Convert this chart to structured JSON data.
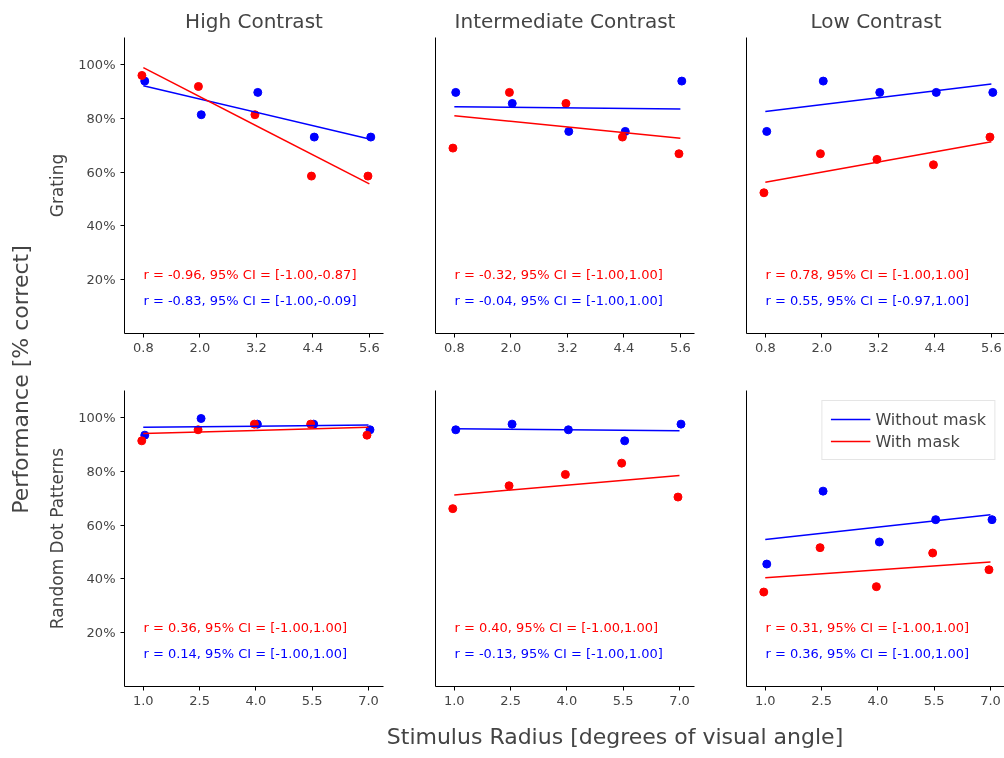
{
  "chart_data": [
    {
      "type": "scatter",
      "title": "High Contrast",
      "ylabel": "Grating",
      "xlim": [
        0.4,
        5.9
      ],
      "ylim": [
        0,
        110
      ],
      "xticks": [
        {
          "value": 0.8,
          "label": "0.8"
        },
        {
          "value": 2.0,
          "label": "2.0"
        },
        {
          "value": 3.2,
          "label": "3.2"
        },
        {
          "value": 4.4,
          "label": "4.4"
        },
        {
          "value": 5.6,
          "label": "5.6"
        }
      ],
      "yticks": [
        {
          "value": 20,
          "label": "20%"
        },
        {
          "value": 40,
          "label": "40%"
        },
        {
          "value": 60,
          "label": "60%"
        },
        {
          "value": 80,
          "label": "80%"
        },
        {
          "value": 100,
          "label": "100%"
        }
      ],
      "series": [
        {
          "type": "scatter",
          "color": "#0000ff",
          "x": [
            0.83,
            2.03,
            3.23,
            4.43,
            5.63
          ],
          "values": [
            93.8,
            81.3,
            89.6,
            73.0,
            73.0
          ]
        },
        {
          "type": "scatter",
          "color": "#ff0000",
          "x": [
            0.77,
            1.97,
            3.17,
            4.37,
            5.57
          ],
          "values": [
            95.9,
            91.8,
            81.3,
            58.5,
            58.5
          ]
        },
        {
          "type": "line",
          "color": "#0000ff",
          "x": [
            0.8,
            5.6
          ],
          "values": [
            92.1,
            72.3
          ]
        },
        {
          "type": "line",
          "color": "#ff0000",
          "x": [
            0.8,
            5.6
          ],
          "values": [
            98.8,
            55.6
          ]
        }
      ],
      "annotations": [
        "r = -0.96, 95% CI = [-1.00,-0.87]",
        "r = -0.83, 95% CI = [-1.00,-0.09]"
      ]
    },
    {
      "type": "scatter",
      "title": "Intermediate Contrast",
      "tick_labels": "x",
      "xlim": [
        0.4,
        5.9
      ],
      "ylim": [
        0,
        110
      ],
      "xticks": [
        {
          "value": 0.8,
          "label": "0.8"
        },
        {
          "value": 2.0,
          "label": "2.0"
        },
        {
          "value": 3.2,
          "label": "3.2"
        },
        {
          "value": 4.4,
          "label": "4.4"
        },
        {
          "value": 5.6,
          "label": "5.6"
        }
      ],
      "series": [
        {
          "type": "scatter",
          "color": "#0000ff",
          "x": [
            0.83,
            2.03,
            3.23,
            4.43,
            5.63
          ],
          "values": [
            89.6,
            85.5,
            75.1,
            75.1,
            93.8
          ]
        },
        {
          "type": "scatter",
          "color": "#ff0000",
          "x": [
            0.77,
            1.97,
            3.17,
            4.37,
            5.57
          ],
          "values": [
            68.9,
            89.6,
            85.5,
            73.0,
            66.8
          ]
        },
        {
          "type": "line",
          "color": "#0000ff",
          "x": [
            0.8,
            5.6
          ],
          "values": [
            84.3,
            83.4
          ]
        },
        {
          "type": "line",
          "color": "#ff0000",
          "x": [
            0.8,
            5.6
          ],
          "values": [
            80.9,
            72.6
          ]
        }
      ],
      "annotations": [
        "r = -0.32, 95% CI = [-1.00,1.00]",
        "r = -0.04, 95% CI = [-1.00,1.00]"
      ]
    },
    {
      "type": "scatter",
      "title": "Low Contrast",
      "tick_labels": "x",
      "xlim": [
        0.4,
        5.9
      ],
      "ylim": [
        0,
        110
      ],
      "xticks": [
        {
          "value": 0.8,
          "label": "0.8"
        },
        {
          "value": 2.0,
          "label": "2.0"
        },
        {
          "value": 3.2,
          "label": "3.2"
        },
        {
          "value": 4.4,
          "label": "4.4"
        },
        {
          "value": 5.6,
          "label": "5.6"
        }
      ],
      "series": [
        {
          "type": "scatter",
          "color": "#0000ff",
          "x": [
            0.83,
            2.03,
            3.23,
            4.43,
            5.63
          ],
          "values": [
            75.1,
            93.8,
            89.6,
            89.6,
            89.6
          ]
        },
        {
          "type": "scatter",
          "color": "#ff0000",
          "x": [
            0.77,
            1.97,
            3.17,
            4.37,
            5.57
          ],
          "values": [
            52.3,
            66.8,
            64.7,
            62.7,
            73.0
          ]
        },
        {
          "type": "line",
          "color": "#0000ff",
          "x": [
            0.8,
            5.6
          ],
          "values": [
            82.5,
            92.7
          ]
        },
        {
          "type": "line",
          "color": "#ff0000",
          "x": [
            0.8,
            5.6
          ],
          "values": [
            56.2,
            71.3
          ]
        }
      ],
      "annotations": [
        "r = 0.78, 95% CI = [-1.00,1.00]",
        "r = 0.55, 95% CI = [-0.97,1.00]"
      ]
    },
    {
      "type": "scatter",
      "ylabel": "Random Dot Patterns",
      "xlim": [
        0.5,
        7.4
      ],
      "ylim": [
        0,
        110
      ],
      "xticks": [
        {
          "value": 1.0,
          "label": "1.0"
        },
        {
          "value": 2.5,
          "label": "2.5"
        },
        {
          "value": 4.0,
          "label": "4.0"
        },
        {
          "value": 5.5,
          "label": "5.5"
        },
        {
          "value": 7.0,
          "label": "7.0"
        }
      ],
      "yticks": [
        {
          "value": 20,
          "label": "20%"
        },
        {
          "value": 40,
          "label": "40%"
        },
        {
          "value": 60,
          "label": "60%"
        },
        {
          "value": 80,
          "label": "80%"
        },
        {
          "value": 100,
          "label": "100%"
        }
      ],
      "series": [
        {
          "type": "scatter",
          "color": "#0000ff",
          "x": [
            1.04,
            2.54,
            4.04,
            5.54,
            7.04
          ],
          "values": [
            93.4,
            99.6,
            97.5,
            97.5,
            95.4
          ]
        },
        {
          "type": "scatter",
          "color": "#ff0000",
          "x": [
            0.96,
            2.46,
            3.96,
            5.46,
            6.96
          ],
          "values": [
            91.3,
            95.4,
            97.5,
            97.5,
            93.4
          ]
        },
        {
          "type": "line",
          "color": "#0000ff",
          "x": [
            1.0,
            7.0
          ],
          "values": [
            96.3,
            97.2
          ]
        },
        {
          "type": "line",
          "color": "#ff0000",
          "x": [
            1.0,
            7.0
          ],
          "values": [
            94.0,
            96.3
          ]
        }
      ],
      "annotations": [
        "r = 0.36, 95% CI = [-1.00,1.00]",
        "r = 0.14, 95% CI = [-1.00,1.00]"
      ]
    },
    {
      "type": "scatter",
      "xlabel": "Stimulus Radius [degrees of visual angle]",
      "tick_labels": "x",
      "xlim": [
        0.5,
        7.4
      ],
      "ylim": [
        0,
        110
      ],
      "xticks": [
        {
          "value": 1.0,
          "label": "1.0"
        },
        {
          "value": 2.5,
          "label": "2.5"
        },
        {
          "value": 4.0,
          "label": "4.0"
        },
        {
          "value": 5.5,
          "label": "5.5"
        },
        {
          "value": 7.0,
          "label": "7.0"
        }
      ],
      "series": [
        {
          "type": "scatter",
          "color": "#0000ff",
          "x": [
            1.04,
            2.54,
            4.04,
            5.54,
            7.04
          ],
          "values": [
            95.4,
            97.5,
            95.4,
            91.3,
            97.5
          ]
        },
        {
          "type": "scatter",
          "color": "#ff0000",
          "x": [
            0.96,
            2.46,
            3.96,
            5.46,
            6.96
          ],
          "values": [
            66.1,
            74.6,
            78.8,
            83.0,
            70.4
          ]
        },
        {
          "type": "line",
          "color": "#0000ff",
          "x": [
            1.0,
            7.0
          ],
          "values": [
            95.8,
            95.0
          ]
        },
        {
          "type": "line",
          "color": "#ff0000",
          "x": [
            1.0,
            7.0
          ],
          "values": [
            71.2,
            78.4
          ]
        }
      ],
      "annotations": [
        "r = 0.40, 95% CI = [-1.00,1.00]",
        "r = -0.13, 95% CI = [-1.00,1.00]"
      ]
    },
    {
      "type": "scatter",
      "tick_labels": "x",
      "legend": "top right",
      "xlim": [
        0.5,
        7.4
      ],
      "ylim": [
        0,
        110
      ],
      "xticks": [
        {
          "value": 1.0,
          "label": "1.0"
        },
        {
          "value": 2.5,
          "label": "2.5"
        },
        {
          "value": 4.0,
          "label": "4.0"
        },
        {
          "value": 5.5,
          "label": "5.5"
        },
        {
          "value": 7.0,
          "label": "7.0"
        }
      ],
      "series": [
        {
          "type": "scatter",
          "color": "#0000ff",
          "x": [
            1.04,
            2.54,
            4.04,
            5.54,
            7.04
          ],
          "values": [
            45.5,
            72.6,
            53.7,
            62.0,
            62.0
          ]
        },
        {
          "type": "scatter",
          "color": "#ff0000",
          "x": [
            0.96,
            2.46,
            3.96,
            5.46,
            6.96
          ],
          "values": [
            35.1,
            51.6,
            37.1,
            49.6,
            43.4
          ]
        },
        {
          "type": "line",
          "name": "Without mask",
          "color": "#0000ff",
          "x": [
            1.0,
            7.0
          ],
          "values": [
            54.6,
            63.8
          ]
        },
        {
          "type": "line",
          "name": "With mask",
          "color": "#ff0000",
          "x": [
            1.0,
            7.0
          ],
          "values": [
            40.4,
            46.3
          ]
        }
      ],
      "annotations": [
        "r = 0.31, 95% CI = [-1.00,1.00]",
        "r = 0.36, 95% CI = [-1.00,1.00]"
      ]
    },
    {
      "type": "other",
      "ylabel": "Performance [% correct]"
    }
  ]
}
